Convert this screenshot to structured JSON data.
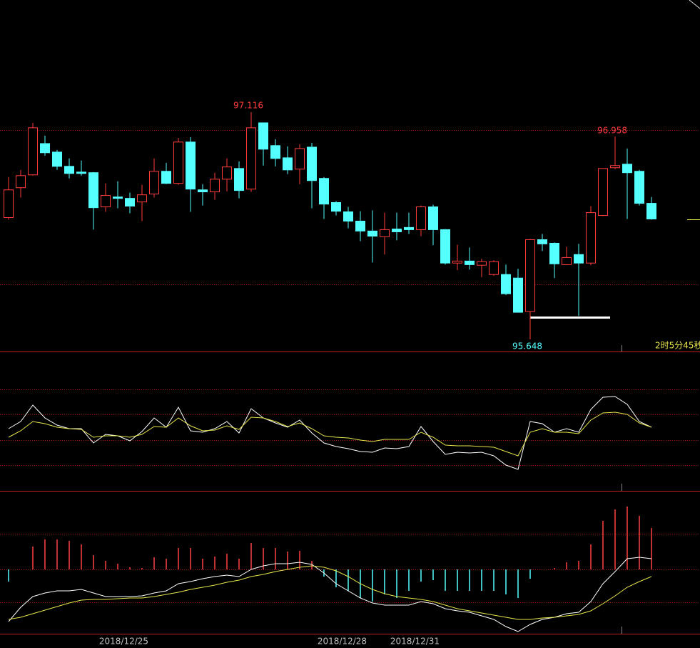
{
  "chart_data": [
    {
      "type": "candlestick",
      "categories": [
        null,
        null,
        null,
        null,
        null,
        null,
        null,
        null,
        null,
        null,
        "2018/12/25",
        null,
        null,
        null,
        null,
        null,
        null,
        null,
        null,
        null,
        null,
        null,
        null,
        null,
        null,
        null,
        null,
        null,
        "2018/12/28",
        null,
        null,
        null,
        null,
        null,
        "2018/12/31",
        null,
        null,
        null,
        null,
        null,
        null,
        null,
        null,
        null,
        null,
        null,
        null,
        null,
        null,
        null,
        null,
        null,
        null,
        null
      ],
      "open": [
        96.435,
        96.628,
        96.711,
        96.913,
        96.858,
        96.766,
        96.729,
        96.725,
        96.504,
        96.568,
        96.559,
        96.536,
        96.587,
        96.734,
        96.656,
        96.923,
        96.614,
        96.601,
        96.683,
        96.752,
        96.619,
        97.047,
        96.9,
        96.821,
        96.748,
        96.89,
        96.688,
        96.532,
        96.472,
        96.412,
        96.348,
        96.311,
        96.361,
        96.371,
        96.357,
        96.504,
        96.357,
        96.141,
        96.154,
        96.127,
        96.067,
        96.067,
        96.044,
        95.828,
        96.292,
        96.269,
        96.131,
        96.196,
        96.141,
        96.449,
        96.757,
        96.78,
        96.734,
        96.527
      ],
      "high": [
        96.697,
        96.743,
        97.047,
        96.964,
        96.872,
        96.817,
        96.803,
        96.729,
        96.656,
        96.67,
        96.596,
        96.647,
        96.817,
        96.789,
        96.95,
        96.955,
        96.651,
        96.725,
        96.817,
        96.798,
        97.116,
        97.047,
        96.941,
        96.895,
        96.909,
        96.918,
        96.697,
        96.541,
        96.504,
        96.476,
        96.481,
        96.467,
        96.467,
        96.467,
        96.513,
        96.518,
        96.361,
        96.26,
        96.242,
        96.168,
        96.159,
        96.131,
        96.104,
        96.297,
        96.329,
        96.274,
        96.246,
        96.265,
        96.509,
        96.752,
        96.958,
        96.881,
        96.743,
        96.568
      ],
      "low": [
        96.421,
        96.564,
        96.706,
        96.835,
        96.743,
        96.688,
        96.706,
        96.357,
        96.472,
        96.495,
        96.463,
        96.412,
        96.564,
        96.651,
        96.647,
        96.472,
        96.513,
        96.55,
        96.605,
        96.559,
        96.601,
        96.771,
        96.766,
        96.716,
        96.651,
        96.495,
        96.426,
        96.449,
        96.366,
        96.283,
        96.145,
        96.196,
        96.288,
        96.329,
        96.315,
        96.256,
        96.131,
        96.095,
        96.099,
        96.049,
        96.058,
        95.934,
        95.823,
        95.648,
        96.219,
        96.044,
        96.127,
        95.8,
        96.127,
        96.444,
        96.748,
        96.426,
        96.513,
        96.421
      ],
      "close": [
        96.614,
        96.706,
        97.015,
        96.854,
        96.766,
        96.72,
        96.72,
        96.499,
        96.578,
        96.559,
        96.509,
        96.582,
        96.734,
        96.656,
        96.923,
        96.619,
        96.601,
        96.683,
        96.762,
        96.61,
        97.015,
        96.877,
        96.817,
        96.743,
        96.881,
        96.674,
        96.522,
        96.476,
        96.412,
        96.348,
        96.315,
        96.357,
        96.343,
        96.357,
        96.504,
        96.357,
        96.141,
        96.154,
        96.131,
        96.15,
        96.15,
        95.943,
        95.823,
        96.292,
        96.265,
        96.136,
        96.177,
        96.141,
        96.467,
        96.752,
        96.771,
        96.725,
        96.527,
        96.426
      ],
      "up_color": "#ff3c3c",
      "down_color": "#54ffff"
    },
    {
      "type": "line",
      "series": [
        {
          "color": "#ffffff",
          "values": [
            87,
            97,
            120,
            102,
            92,
            87,
            87,
            67,
            79,
            77,
            70,
            83,
            102,
            89,
            117,
            84,
            82,
            87,
            97,
            81,
            115,
            102,
            95,
            89,
            99,
            81,
            67,
            62,
            59,
            55,
            54,
            60,
            59,
            62,
            90,
            69,
            51,
            54,
            53,
            54,
            49,
            36,
            30,
            97,
            94,
            82,
            87,
            82,
            114,
            131,
            132,
            121,
            97,
            89
          ]
        },
        {
          "color": "#e6e64c",
          "values": [
            75,
            84,
            97,
            94,
            89,
            87,
            86,
            75,
            77,
            77,
            75,
            79,
            90,
            89,
            102,
            91,
            84,
            85,
            91,
            86,
            103,
            102,
            97,
            90,
            95,
            87,
            77,
            75,
            74,
            71,
            69,
            72,
            72,
            72,
            82,
            75,
            64,
            63,
            63,
            62,
            61,
            55,
            49,
            82,
            87,
            82,
            82,
            80,
            99,
            109,
            110,
            107,
            95,
            89
          ]
        }
      ]
    },
    {
      "type": "combo",
      "bars": [
        -17,
        0,
        32,
        42,
        42,
        40,
        35,
        20,
        12,
        8,
        3,
        2,
        17,
        15,
        30,
        30,
        15,
        18,
        22,
        15,
        37,
        30,
        30,
        25,
        26,
        12,
        -10,
        -25,
        -30,
        -40,
        -45,
        -35,
        -40,
        -30,
        -17,
        -15,
        -30,
        -30,
        -30,
        -30,
        -30,
        -35,
        -40,
        -13,
        0,
        2,
        10,
        12,
        35,
        68,
        84,
        88,
        75,
        58
      ],
      "up_color": "#ff4040",
      "down_color": "#54ffff",
      "series": [
        {
          "color": "#ffffff",
          "values": [
            -73,
            -53,
            -38,
            -33,
            -30,
            -30,
            -28,
            -33,
            -38,
            -38,
            -38,
            -37,
            -33,
            -30,
            -20,
            -17,
            -13,
            -10,
            -8,
            -10,
            0,
            5,
            8,
            8,
            10,
            7,
            -5,
            -20,
            -30,
            -40,
            -47,
            -50,
            -50,
            -50,
            -45,
            -48,
            -55,
            -58,
            -60,
            -65,
            -70,
            -80,
            -87,
            -77,
            -70,
            -67,
            -62,
            -60,
            -45,
            -20,
            -3,
            15,
            17,
            15
          ]
        },
        {
          "color": "#e6e64c",
          "values": [
            -70,
            -67,
            -62,
            -57,
            -52,
            -47,
            -43,
            -42,
            -42,
            -41,
            -40,
            -40,
            -38,
            -35,
            -32,
            -28,
            -25,
            -22,
            -18,
            -15,
            -10,
            -7,
            -3,
            0,
            3,
            5,
            3,
            -2,
            -10,
            -20,
            -28,
            -34,
            -38,
            -40,
            -42,
            -45,
            -50,
            -55,
            -58,
            -61,
            -64,
            -67,
            -70,
            -70,
            -68,
            -67,
            -65,
            -63,
            -58,
            -48,
            -37,
            -25,
            -17,
            -10
          ]
        }
      ]
    }
  ],
  "countdown": "2时5分45秒"
}
